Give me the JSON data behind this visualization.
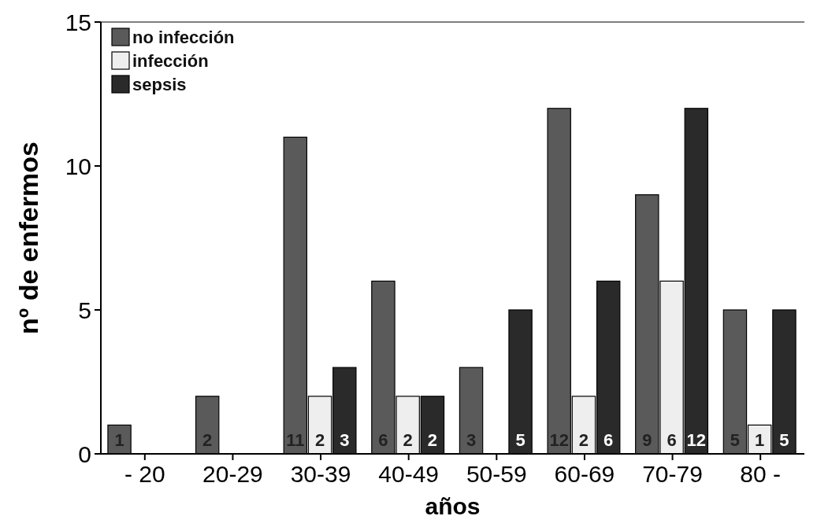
{
  "chart_data": {
    "type": "bar",
    "xlabel": "años",
    "ylabel": "nº de enfermos",
    "categories": [
      "- 20",
      "20-29",
      "30-39",
      "40-49",
      "50-59",
      "60-69",
      "70-79",
      "80 -"
    ],
    "series": [
      {
        "name": "no infección",
        "color": "#5a5a5a",
        "values": [
          1,
          2,
          11,
          6,
          3,
          12,
          9,
          5
        ],
        "value_labels": [
          "1",
          "2",
          "11",
          "6",
          "3",
          "12",
          "9",
          "5"
        ]
      },
      {
        "name": "infección",
        "color": "#eeeeee",
        "values": [
          null,
          null,
          2,
          2,
          null,
          2,
          6,
          1
        ],
        "value_labels": [
          null,
          null,
          "2",
          "2",
          null,
          "2",
          "6",
          "1"
        ]
      },
      {
        "name": "sepsis",
        "color": "#2a2a2a",
        "values": [
          null,
          null,
          3,
          2,
          5,
          6,
          12,
          5
        ],
        "value_labels": [
          null,
          null,
          "3",
          "2",
          "5",
          "6",
          "12",
          "5"
        ]
      }
    ],
    "ylim": [
      0,
      15
    ],
    "yticks": [
      0,
      5,
      10,
      15
    ],
    "grid": false,
    "legend": "top left"
  }
}
